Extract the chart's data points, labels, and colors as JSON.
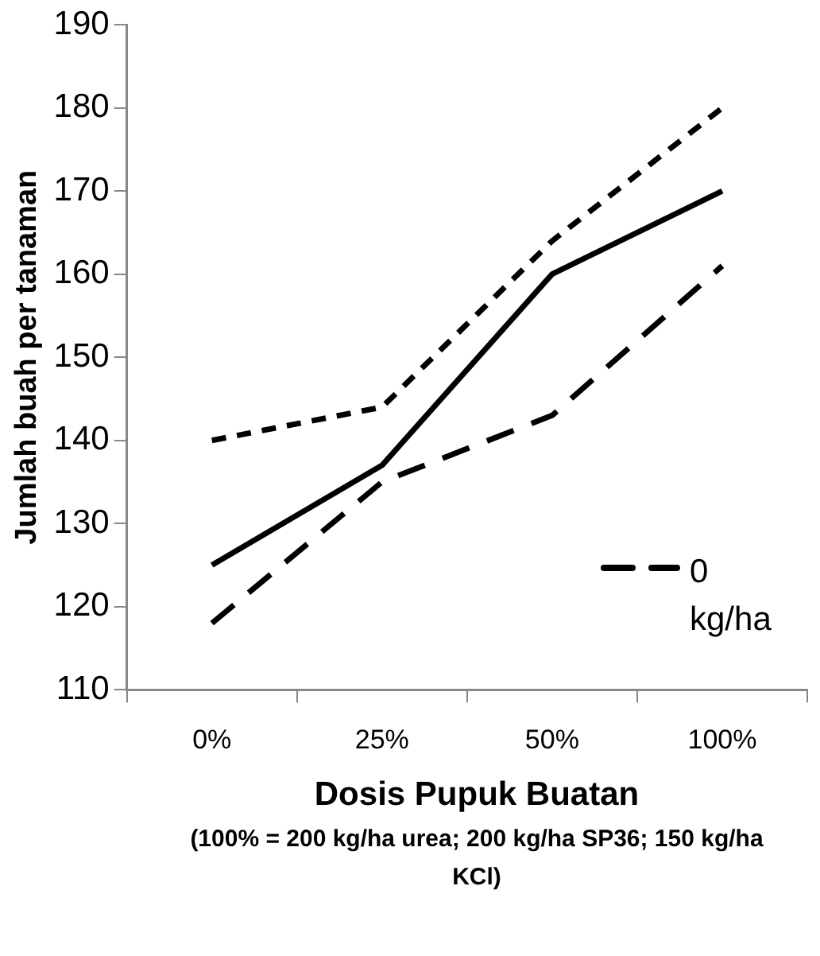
{
  "chart_data": {
    "type": "line",
    "xlabel": "Dosis Pupuk Buatan",
    "ylabel": "Jumlah buah per tanaman",
    "annotations": [
      "(100% = 200 kg/ha urea; 200 kg/ha SP36; 150 kg/ha KCl)"
    ],
    "categories": [
      "0%",
      "25%",
      "50%",
      "100%"
    ],
    "series": [
      {
        "color": "#000000",
        "line_style": "solid",
        "values": [
          125,
          137,
          160,
          170
        ]
      },
      {
        "color": "#000000",
        "line_style": "dotted",
        "values": [
          140,
          144,
          164,
          180
        ]
      },
      {
        "name": "0 kg/ha",
        "color": "#000000",
        "line_style": "dashed",
        "values": [
          118,
          135,
          143,
          161
        ]
      }
    ],
    "ylim": [
      110,
      190
    ],
    "yticks": [
      110,
      120,
      130,
      140,
      150,
      160,
      170,
      180,
      190
    ],
    "grid": false,
    "legend": "right",
    "marker": "none"
  }
}
